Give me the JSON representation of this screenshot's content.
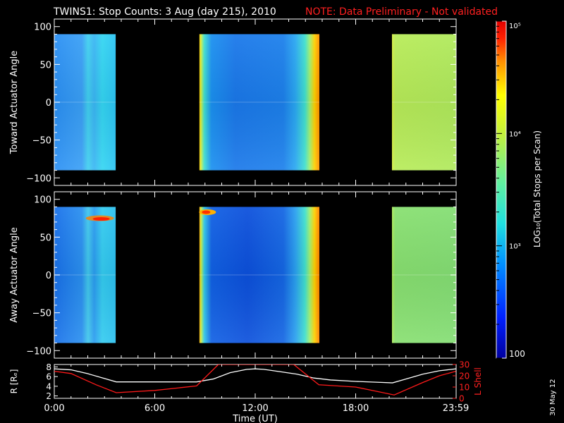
{
  "header": {
    "title": "TWINS1: Stop Counts:  3 Aug (day 215), 2010",
    "note": "NOTE: Data Preliminary - Not validated",
    "title_color": "#ffffff",
    "note_color": "#ff2020"
  },
  "stamp": "30 May 12",
  "chart_data": [
    {
      "type": "heatmap",
      "ylabel": "Toward Actuator Angle",
      "ylim": [
        -110,
        110
      ],
      "yticks": [
        "100",
        "50",
        "0",
        "−50",
        "−100"
      ],
      "yticks_values": [
        100,
        50,
        0,
        -50,
        -100
      ],
      "xlim_hours": [
        0,
        24
      ],
      "data_angle_range": [
        -90,
        90
      ],
      "data_segments": [
        {
          "start": "0:00",
          "end": "3:40",
          "level": "1e2.7-1e3",
          "color": "#1e90f0"
        },
        {
          "start": "8:40",
          "end": "15:50",
          "level": "1e2.6-1e3",
          "color": "#1a70e6"
        },
        {
          "start": "20:10",
          "end": "23:59",
          "level": "1e3.9",
          "color": "#b6ec58"
        }
      ]
    },
    {
      "type": "heatmap",
      "ylabel": "Away Actuator Angle",
      "ylim": [
        -110,
        110
      ],
      "yticks": [
        "100",
        "50",
        "0",
        "−50",
        "−100"
      ],
      "yticks_values": [
        100,
        50,
        0,
        -50,
        -100
      ],
      "xlim_hours": [
        0,
        24
      ],
      "data_angle_range": [
        -90,
        90
      ],
      "data_segments": [
        {
          "start": "0:00",
          "end": "3:40",
          "level": "1e2.7-1e3",
          "color": "#1e90f0"
        },
        {
          "start": "8:40",
          "end": "15:50",
          "level": "1e2.6-1e3",
          "color": "#1a70e6"
        },
        {
          "start": "20:10",
          "end": "23:59",
          "level": "1e3.7",
          "color": "#8ae070"
        }
      ]
    },
    {
      "type": "line",
      "xlabel": "Time (UT)",
      "xticks": [
        "0:00",
        "6:00",
        "12:00",
        "18:00",
        "23:59"
      ],
      "xticks_hours": [
        0,
        6,
        12,
        18,
        23.98
      ],
      "ylabel_left": "R [Rₑ]",
      "ylabel_right": "L Shell",
      "ylim_left": [
        1.5,
        8.5
      ],
      "ylim_right": [
        0,
        30
      ],
      "yticks_left": [
        "8",
        "6",
        "4",
        "2"
      ],
      "yticks_left_values": [
        8,
        6,
        4,
        2
      ],
      "yticks_right": [
        "30",
        "20",
        "10",
        "0"
      ],
      "yticks_right_values": [
        30,
        20,
        10,
        0
      ],
      "series": [
        {
          "color": "#ffffff",
          "axis": "left",
          "x": [
            0,
            1,
            2,
            3,
            3.7,
            5,
            7,
            8.5,
            9.5,
            10.5,
            11.5,
            12,
            12.5,
            13.5,
            14.5,
            15.5,
            16.5,
            18,
            19.5,
            20.2,
            21,
            22,
            23,
            23.98
          ],
          "y": [
            7.6,
            7.4,
            6.6,
            5.6,
            4.9,
            4.9,
            4.9,
            4.9,
            5.5,
            6.8,
            7.5,
            7.6,
            7.5,
            7.0,
            6.5,
            5.7,
            5.3,
            5.0,
            4.8,
            4.7,
            5.5,
            6.5,
            7.2,
            7.6
          ]
        },
        {
          "color": "#ff1a1a",
          "axis": "right",
          "x": [
            0,
            1,
            2.5,
            3.7,
            6,
            8.5,
            9.8,
            10.3,
            14.3,
            15.8,
            18,
            20.3,
            22,
            23,
            23.98
          ],
          "y": [
            24,
            22,
            12,
            5,
            7,
            11,
            30,
            30,
            30,
            12,
            10,
            3,
            14,
            20,
            24
          ]
        }
      ]
    }
  ],
  "colorbar": {
    "label": "LOG₁₀(Total Stops per Scan)",
    "ticks": [
      "10⁵",
      "10⁴",
      "10³",
      "100"
    ],
    "tick_log_values": [
      5,
      4,
      3,
      2
    ],
    "range_log": [
      2,
      5
    ],
    "colors": [
      "#0000a0",
      "#0020ff",
      "#0090ff",
      "#20e0e0",
      "#60f0a0",
      "#c0f040",
      "#ffff00",
      "#ff9000",
      "#ff2000",
      "#e00000"
    ]
  }
}
